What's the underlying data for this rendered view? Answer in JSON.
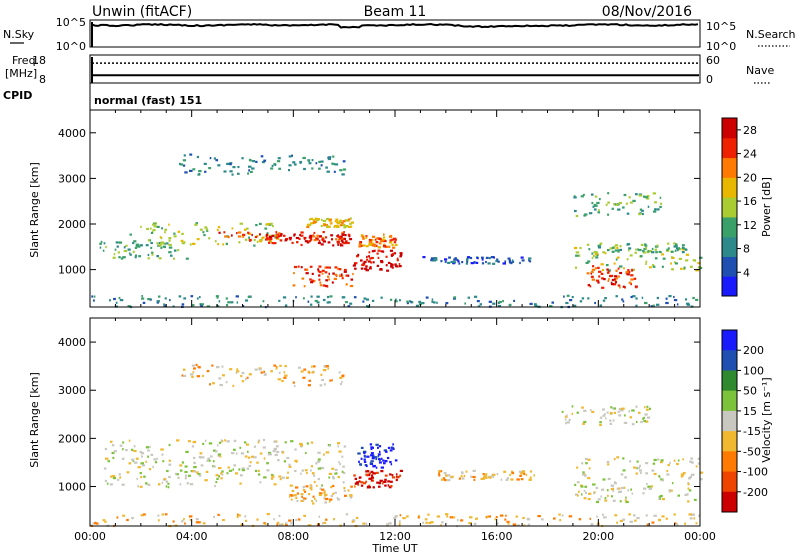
{
  "header": {
    "site": "Unwin (fitACF)",
    "beam": "Beam 11",
    "date": "08/Nov/2016"
  },
  "noise_panel": {
    "left_label": "N.Sky",
    "right_label": "N.Search",
    "left_ticks": [
      "10^5",
      "10^0"
    ],
    "right_ticks": [
      "10^5",
      "10^0"
    ]
  },
  "freq_panel": {
    "left_label_line1": "Freq.",
    "left_label_line2": "[MHz]",
    "right_label": "Nave",
    "left_ticks": [
      "18",
      "8"
    ],
    "right_ticks": [
      "60",
      "0"
    ],
    "freq_mhz": 11,
    "nave": 46
  },
  "cpid": {
    "label": "CPID",
    "value": "normal (fast) 151"
  },
  "colors": {
    "power": [
      "#1a1aff",
      "#1f4fb0",
      "#2e8a8a",
      "#3aa06a",
      "#aacc33",
      "#e8b800",
      "#ff7a00",
      "#ee2200",
      "#cc0000"
    ],
    "velocity": [
      "#1a1aff",
      "#1f4fb0",
      "#2f8a2f",
      "#7cc23a",
      "#c8c8c0",
      "#f0b830",
      "#ff7a00",
      "#ee4400",
      "#cc0000"
    ]
  },
  "chart_data": [
    {
      "type": "heatmap",
      "panel": "power",
      "xlabel": "",
      "ylabel": "Slant Range [km]",
      "xlim": [
        "00:00",
        "00:00"
      ],
      "ylim": [
        180,
        4500
      ],
      "yticks": [
        "1000",
        "2000",
        "3000",
        "4000"
      ],
      "colorbar": {
        "label": "Power [dB]",
        "ticks": [
          "4",
          "8",
          "12",
          "16",
          "20",
          "24",
          "28"
        ],
        "range": [
          0,
          30
        ]
      },
      "bands": [
        {
          "t0": 0.2,
          "t1": 3.8,
          "r0": 1250,
          "r1": 1650,
          "cls": 3
        },
        {
          "t0": 1.5,
          "t1": 7.5,
          "r0": 1550,
          "r1": 2050,
          "cls": 4
        },
        {
          "t0": 5.0,
          "t1": 10.0,
          "r0": 1650,
          "r1": 1850,
          "cls": 7
        },
        {
          "t0": 7.0,
          "t1": 10.2,
          "r0": 1550,
          "r1": 1800,
          "cls": 8
        },
        {
          "t0": 8.5,
          "t1": 10.3,
          "r0": 1950,
          "r1": 2150,
          "cls": 5
        },
        {
          "t0": 7.8,
          "t1": 10.4,
          "r0": 650,
          "r1": 1100,
          "cls": 7
        },
        {
          "t0": 10.3,
          "t1": 12.2,
          "r0": 1000,
          "r1": 1450,
          "cls": 8
        },
        {
          "t0": 10.5,
          "t1": 12.0,
          "r0": 1500,
          "r1": 1800,
          "cls": 6
        },
        {
          "t0": 13.0,
          "t1": 17.5,
          "r0": 1150,
          "r1": 1300,
          "cls": 1
        },
        {
          "t0": 19.5,
          "t1": 21.5,
          "r0": 600,
          "r1": 1100,
          "cls": 7
        },
        {
          "t0": 19.0,
          "t1": 24.0,
          "r0": 1000,
          "r1": 1500,
          "cls": 4
        },
        {
          "t0": 19.5,
          "t1": 23.5,
          "r0": 1400,
          "r1": 1600,
          "cls": 3
        },
        {
          "t0": 19.0,
          "t1": 22.5,
          "r0": 2200,
          "r1": 2700,
          "cls": 3
        },
        {
          "t0": 3.5,
          "t1": 10.0,
          "r0": 3100,
          "r1": 3550,
          "cls": 2
        },
        {
          "t0": 0.0,
          "t1": 24.0,
          "r0": 200,
          "r1": 450,
          "cls": 2
        }
      ]
    },
    {
      "type": "heatmap",
      "panel": "velocity",
      "xlabel": "Time UT",
      "ylabel": "Slant Range [km]",
      "xlim": [
        "00:00",
        "00:00"
      ],
      "ylim": [
        180,
        4500
      ],
      "xticks": [
        "00:00",
        "04:00",
        "08:00",
        "12:00",
        "16:00",
        "20:00",
        "00:00"
      ],
      "yticks": [
        "1000",
        "2000",
        "3000",
        "4000"
      ],
      "colorbar": {
        "label": "Velocity [m s⁻¹]",
        "ticks": [
          "200",
          "100",
          "50",
          "15",
          "-15",
          "-50",
          "-100",
          "-200"
        ],
        "range": [
          -250,
          250
        ]
      },
      "bands": [
        {
          "t0": 0.5,
          "t1": 10.0,
          "r0": 1000,
          "r1": 2000,
          "cls": 4
        },
        {
          "t0": 7.8,
          "t1": 10.4,
          "r0": 650,
          "r1": 1050,
          "cls": 5
        },
        {
          "t0": 10.3,
          "t1": 12.2,
          "r0": 1000,
          "r1": 1350,
          "cls": 8
        },
        {
          "t0": 10.5,
          "t1": 12.0,
          "r0": 1400,
          "r1": 1900,
          "cls": 0
        },
        {
          "t0": 13.5,
          "t1": 17.5,
          "r0": 1150,
          "r1": 1350,
          "cls": 5
        },
        {
          "t0": 19.0,
          "t1": 24.0,
          "r0": 700,
          "r1": 1650,
          "cls": 4
        },
        {
          "t0": 18.5,
          "t1": 22.0,
          "r0": 2300,
          "r1": 2700,
          "cls": 4
        },
        {
          "t0": 3.5,
          "t1": 10.0,
          "r0": 3100,
          "r1": 3550,
          "cls": 5
        },
        {
          "t0": 0.0,
          "t1": 24.0,
          "r0": 200,
          "r1": 450,
          "cls": 5
        }
      ]
    }
  ]
}
